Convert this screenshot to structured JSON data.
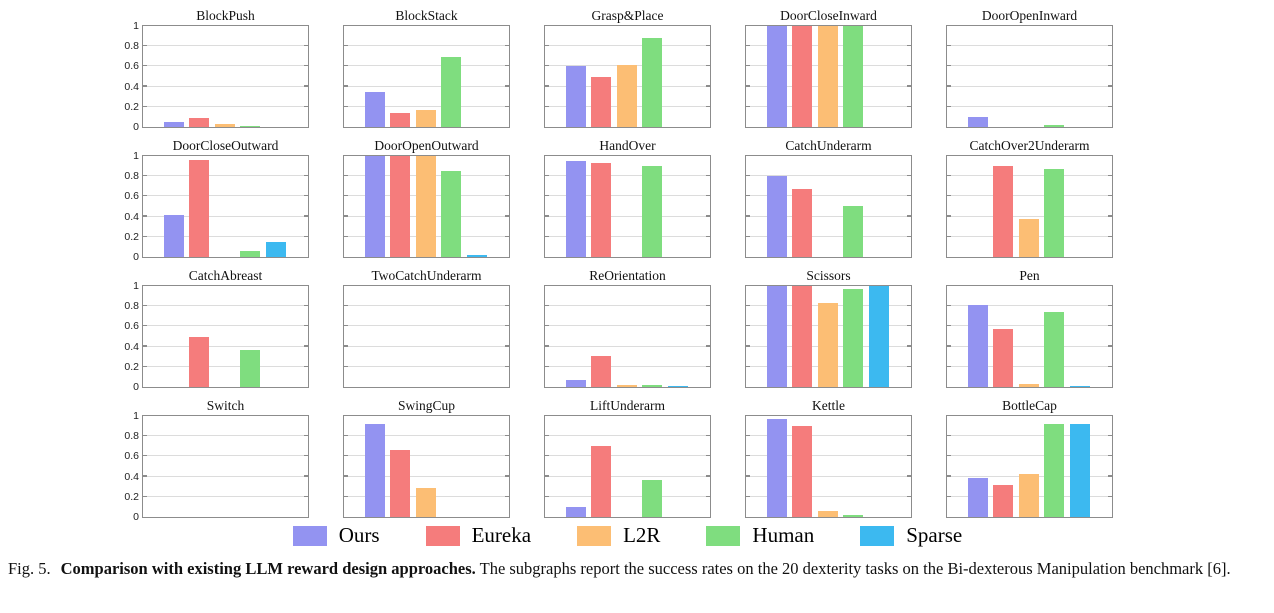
{
  "figure": {
    "caption": {
      "fig_label": "Fig. 5.",
      "bold": "Comparison with existing LLM reward design approaches.",
      "text": "The subgraphs report the success rates on the 20 dexterity tasks on the Bi-dexterous Manipulation benchmark [6]."
    }
  },
  "chart_data": {
    "type": "bar",
    "layout": "small-multiples 4 rows x 5 cols",
    "legend_position": "bottom",
    "grid": true,
    "ylim": [
      0,
      1
    ],
    "ytick_values": [
      0,
      0.2,
      0.4,
      0.6,
      0.8,
      1
    ],
    "ytick_labels": [
      "0",
      "0.2",
      "0.4",
      "0.6",
      "0.8",
      "1"
    ],
    "series_names": [
      "Ours",
      "Eureka",
      "L2R",
      "Human",
      "Sparse"
    ],
    "series_colors": {
      "Ours": "#9393f1",
      "Eureka": "#f57c7c",
      "L2R": "#fcbe74",
      "Human": "#7fdd7f",
      "Sparse": "#3cb9f0"
    },
    "panels": [
      {
        "title": "BlockPush",
        "values": [
          0.05,
          0.09,
          0.03,
          0.01,
          0
        ]
      },
      {
        "title": "BlockStack",
        "values": [
          0.35,
          0.14,
          0.17,
          0.69,
          0
        ]
      },
      {
        "title": "Grasp&Place",
        "values": [
          0.6,
          0.5,
          0.61,
          0.88,
          0
        ]
      },
      {
        "title": "DoorCloseInward",
        "values": [
          1,
          1,
          1,
          1,
          0
        ]
      },
      {
        "title": "DoorOpenInward",
        "values": [
          0.1,
          0,
          0,
          0.02,
          0
        ]
      },
      {
        "title": "DoorCloseOutward",
        "values": [
          0.42,
          0.96,
          0,
          0.06,
          0.15
        ]
      },
      {
        "title": "DoorOpenOutward",
        "values": [
          1,
          1,
          1,
          0.85,
          0.02
        ]
      },
      {
        "title": "HandOver",
        "values": [
          0.95,
          0.93,
          0,
          0.9,
          0
        ]
      },
      {
        "title": "CatchUnderarm",
        "values": [
          0.8,
          0.67,
          0,
          0.51,
          0
        ]
      },
      {
        "title": "CatchOver2Underarm",
        "values": [
          0,
          0.9,
          0.38,
          0.87,
          0
        ]
      },
      {
        "title": "CatchAbreast",
        "values": [
          0,
          0.5,
          0,
          0.37,
          0
        ]
      },
      {
        "title": "TwoCatchUnderarm",
        "values": [
          0,
          0,
          0,
          0,
          0
        ]
      },
      {
        "title": "ReOrientation",
        "values": [
          0.07,
          0.31,
          0.02,
          0.02,
          0.01
        ]
      },
      {
        "title": "Scissors",
        "values": [
          1,
          1,
          0.83,
          0.97,
          1
        ]
      },
      {
        "title": "Pen",
        "values": [
          0.81,
          0.57,
          0.03,
          0.74,
          0.01
        ]
      },
      {
        "title": "Switch",
        "values": [
          0,
          0,
          0,
          0,
          0
        ]
      },
      {
        "title": "SwingCup",
        "values": [
          0.92,
          0.66,
          0.29,
          0,
          0
        ]
      },
      {
        "title": "LiftUnderarm",
        "values": [
          0.1,
          0.7,
          0,
          0.37,
          0
        ]
      },
      {
        "title": "Kettle",
        "values": [
          0.97,
          0.9,
          0.06,
          0.02,
          0
        ]
      },
      {
        "title": "BottleCap",
        "values": [
          0.39,
          0.32,
          0.43,
          0.92,
          0.92
        ]
      }
    ]
  }
}
